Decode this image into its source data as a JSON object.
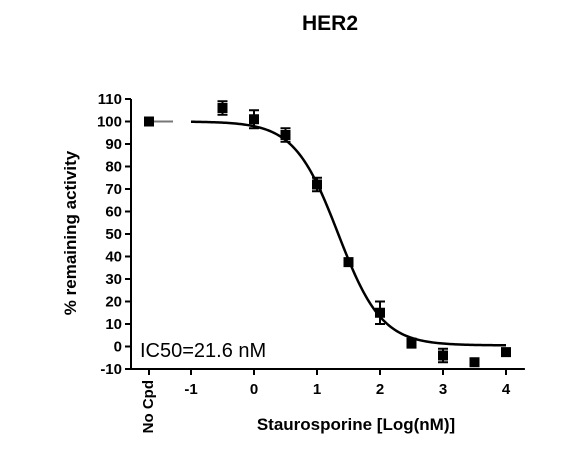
{
  "chart_data": {
    "type": "scatter",
    "title": "HER2",
    "xlabel": "Staurosporine [Log(nM)]",
    "ylabel": "% remaining activity",
    "xlim": [
      -1.4,
      4.3
    ],
    "ylim": [
      -10,
      110
    ],
    "x_ticks": [
      -1,
      0,
      1,
      2,
      3,
      4
    ],
    "y_ticks": [
      -10,
      0,
      10,
      20,
      30,
      40,
      50,
      60,
      70,
      80,
      90,
      100,
      110
    ],
    "control": {
      "label": "No Cpd",
      "value": 100
    },
    "points": [
      {
        "x": -0.5,
        "y": 106,
        "err": 3
      },
      {
        "x": 0,
        "y": 101,
        "err": 4
      },
      {
        "x": 0.5,
        "y": 94,
        "err": 3
      },
      {
        "x": 1,
        "y": 72,
        "err": 3
      },
      {
        "x": 1.5,
        "y": 37.5,
        "err": 1
      },
      {
        "x": 2,
        "y": 15,
        "err": 5
      },
      {
        "x": 2.5,
        "y": 1.5,
        "err": 2
      },
      {
        "x": 3,
        "y": -4,
        "err": 3
      },
      {
        "x": 3.5,
        "y": -7,
        "err": 0
      },
      {
        "x": 4,
        "y": -2.5,
        "err": 0
      }
    ],
    "fit": {
      "top": 100,
      "bottom": 0.5,
      "log_ic50": 1.334,
      "hill": -1.25,
      "x_range": [
        -1,
        4
      ]
    },
    "annotation": "IC50=21.6 nM",
    "grid": false,
    "legend": "none"
  }
}
